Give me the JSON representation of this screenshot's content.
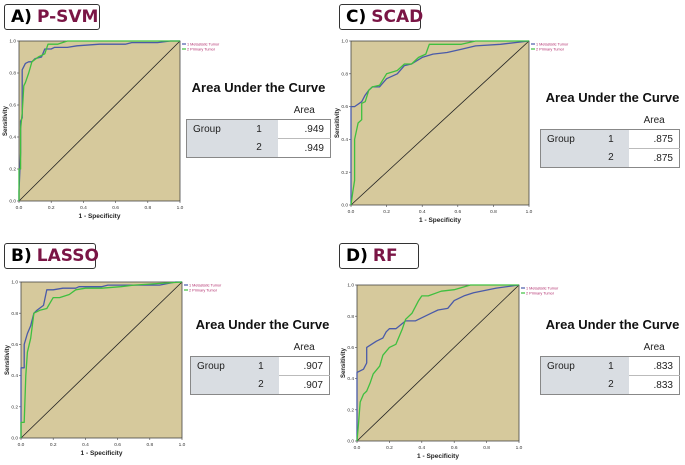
{
  "common": {
    "xlabel": "1 - Specificity",
    "ylabel": "Sensitivity",
    "ticks": [
      "0.0",
      "0.2",
      "0.4",
      "0.6",
      "0.8",
      "1.0"
    ],
    "legend": [
      "1 Metastatic Tumor",
      "2 Primary Tumor"
    ],
    "auc_title": "Area Under the Curve",
    "auc_col": "Area",
    "auc_row": "Group",
    "colors": {
      "bg": "#d6c99c",
      "blue": "#4a5aa8",
      "green": "#3fbf3f",
      "diag": "#222222"
    }
  },
  "panels": [
    {
      "letter": "A)",
      "name": "P-SVM",
      "auc": [
        ".949",
        ".949"
      ]
    },
    {
      "letter": "C)",
      "name": "SCAD",
      "auc": [
        ".875",
        ".875"
      ]
    },
    {
      "letter": "B)",
      "name": "LASSO",
      "auc": [
        ".907",
        ".907"
      ]
    },
    {
      "letter": "D)",
      "name": "RF",
      "auc": [
        ".833",
        ".833"
      ]
    }
  ],
  "chart_data": [
    {
      "type": "line",
      "title": "P-SVM",
      "xlabel": "1 - Specificity",
      "ylabel": "Sensitivity",
      "xlim": [
        0,
        1
      ],
      "ylim": [
        0,
        1
      ],
      "legend": "top-right",
      "series": [
        {
          "name": "1 Metastatic Tumor",
          "color": "#4a5aa8",
          "x": [
            0,
            0,
            0.01,
            0.01,
            0.02,
            0.02,
            0.04,
            0.06,
            0.08,
            0.1,
            0.14,
            0.16,
            0.2,
            0.22,
            0.3,
            0.36,
            0.5,
            0.66,
            0.7,
            0.86,
            0.94,
            1
          ],
          "y": [
            0,
            0.06,
            0.3,
            0.5,
            0.52,
            0.82,
            0.86,
            0.87,
            0.87,
            0.89,
            0.9,
            0.95,
            0.95,
            0.96,
            0.96,
            0.97,
            0.98,
            0.98,
            0.99,
            0.99,
            1,
            1
          ]
        },
        {
          "name": "2 Primary Tumor",
          "color": "#3fbf3f",
          "x": [
            0,
            0,
            0.01,
            0.01,
            0.02,
            0.03,
            0.04,
            0.06,
            0.08,
            0.12,
            0.16,
            0.18,
            0.24,
            0.3,
            0.5,
            1
          ],
          "y": [
            0,
            0.2,
            0.2,
            0.45,
            0.55,
            0.72,
            0.74,
            0.8,
            0.87,
            0.9,
            0.92,
            0.98,
            0.98,
            1,
            1,
            1
          ]
        }
      ]
    },
    {
      "type": "line",
      "title": "SCAD",
      "xlabel": "1 - Specificity",
      "ylabel": "Sensitivity",
      "xlim": [
        0,
        1
      ],
      "ylim": [
        0,
        1
      ],
      "legend": "top-right",
      "series": [
        {
          "name": "1 Metastatic Tumor",
          "color": "#4a5aa8",
          "x": [
            0,
            0,
            0.02,
            0.06,
            0.08,
            0.1,
            0.12,
            0.16,
            0.2,
            0.26,
            0.3,
            0.34,
            0.4,
            0.46,
            0.54,
            0.62,
            0.7,
            0.84,
            1
          ],
          "y": [
            0,
            0.6,
            0.6,
            0.63,
            0.67,
            0.7,
            0.72,
            0.72,
            0.77,
            0.8,
            0.85,
            0.86,
            0.9,
            0.92,
            0.93,
            0.95,
            0.97,
            0.98,
            1
          ]
        },
        {
          "name": "2 Primary Tumor",
          "color": "#3fbf3f",
          "x": [
            0,
            0.01,
            0.02,
            0.02,
            0.04,
            0.06,
            0.06,
            0.08,
            0.1,
            0.12,
            0.16,
            0.2,
            0.26,
            0.3,
            0.34,
            0.38,
            0.42,
            0.44,
            0.62,
            0.7,
            1
          ],
          "y": [
            0,
            0.08,
            0.15,
            0.4,
            0.5,
            0.52,
            0.62,
            0.63,
            0.7,
            0.72,
            0.73,
            0.8,
            0.82,
            0.86,
            0.86,
            0.9,
            0.92,
            0.98,
            0.98,
            1,
            1
          ]
        }
      ]
    },
    {
      "type": "line",
      "title": "LASSO",
      "xlabel": "1 - Specificity",
      "ylabel": "Sensitivity",
      "xlim": [
        0,
        1
      ],
      "ylim": [
        0,
        1
      ],
      "legend": "top-right",
      "series": [
        {
          "name": "1 Metastatic Tumor",
          "color": "#4a5aa8",
          "x": [
            0,
            0,
            0.02,
            0.02,
            0.04,
            0.06,
            0.08,
            0.1,
            0.14,
            0.16,
            0.2,
            0.26,
            0.34,
            0.36,
            0.5,
            0.54,
            0.86,
            0.96,
            1
          ],
          "y": [
            0,
            0.45,
            0.45,
            0.6,
            0.67,
            0.72,
            0.8,
            0.82,
            0.85,
            0.95,
            0.95,
            0.96,
            0.96,
            0.97,
            0.97,
            0.98,
            0.98,
            1,
            1
          ]
        },
        {
          "name": "2 Primary Tumor",
          "color": "#3fbf3f",
          "x": [
            0,
            0,
            0.02,
            0.03,
            0.04,
            0.06,
            0.08,
            0.12,
            0.16,
            0.2,
            0.24,
            0.3,
            0.34,
            0.4,
            0.5,
            0.62,
            0.7,
            1
          ],
          "y": [
            0,
            0.1,
            0.1,
            0.4,
            0.55,
            0.64,
            0.8,
            0.82,
            0.83,
            0.9,
            0.9,
            0.92,
            0.95,
            0.96,
            0.96,
            0.97,
            0.98,
            1
          ]
        }
      ]
    },
    {
      "type": "line",
      "title": "RF",
      "xlabel": "1 - Specificity",
      "ylabel": "Sensitivity",
      "xlim": [
        0,
        1
      ],
      "ylim": [
        0,
        1
      ],
      "legend": "top-right",
      "series": [
        {
          "name": "1 Metastatic Tumor",
          "color": "#4a5aa8",
          "x": [
            0,
            0,
            0.04,
            0.06,
            0.06,
            0.12,
            0.16,
            0.18,
            0.2,
            0.24,
            0.3,
            0.36,
            0.46,
            0.5,
            0.56,
            0.6,
            0.66,
            0.72,
            0.86,
            1
          ],
          "y": [
            0,
            0.44,
            0.46,
            0.5,
            0.6,
            0.64,
            0.66,
            0.7,
            0.72,
            0.72,
            0.77,
            0.77,
            0.82,
            0.84,
            0.85,
            0.9,
            0.93,
            0.95,
            0.98,
            1
          ]
        },
        {
          "name": "2 Primary Tumor",
          "color": "#3fbf3f",
          "x": [
            0,
            0.01,
            0.02,
            0.04,
            0.06,
            0.08,
            0.1,
            0.14,
            0.16,
            0.2,
            0.24,
            0.28,
            0.3,
            0.34,
            0.38,
            0.4,
            0.44,
            0.52,
            0.6,
            0.7,
            1
          ],
          "y": [
            0,
            0.12,
            0.25,
            0.3,
            0.32,
            0.37,
            0.43,
            0.48,
            0.55,
            0.6,
            0.62,
            0.72,
            0.78,
            0.82,
            0.9,
            0.93,
            0.93,
            0.96,
            0.97,
            1,
            1
          ]
        }
      ]
    }
  ]
}
